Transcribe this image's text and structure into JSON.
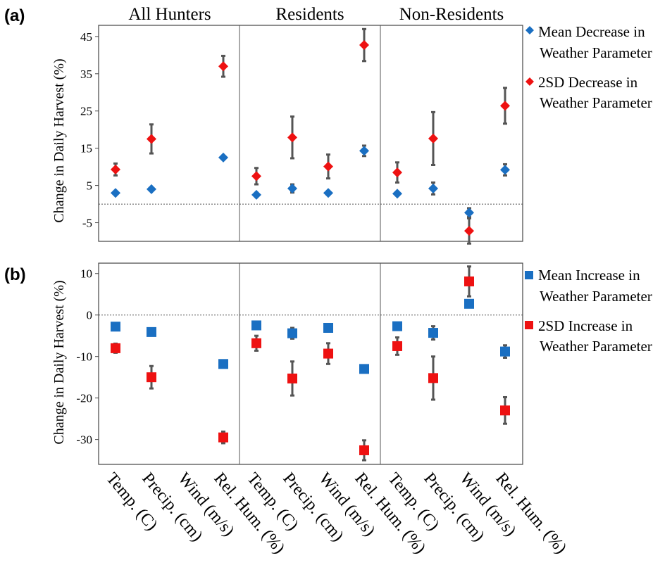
{
  "chart_data": [
    {
      "type": "scatter",
      "panel_label": "(a)",
      "groups": [
        "All Hunters",
        "Residents",
        "Non-Residents"
      ],
      "categories": [
        "Temp. (C)",
        "Precip. (cm)",
        "Wind (m/s)",
        "Rel. Hum. (%)"
      ],
      "ylabel": "Change in Daily Harvest (%)",
      "ylim": [
        -10,
        48
      ],
      "yticks": [
        "45",
        "35",
        "25",
        "15",
        "5",
        "-5"
      ],
      "ytick_values": [
        45,
        35,
        25,
        15,
        5,
        -5
      ],
      "reference_line": 0,
      "marker": "diamond",
      "series": [
        {
          "name": "Mean Decrease in Weather Parameter",
          "legend_lines": [
            "Mean Decrease in",
            "Weather Parameter"
          ],
          "color": "#1a6fc2",
          "values": [
            [
              3,
              4,
              null,
              12.5
            ],
            [
              2.5,
              4.2,
              3,
              14.3
            ],
            [
              2.8,
              4.2,
              -2.3,
              9.2
            ]
          ],
          "errors": [
            [
              null,
              null,
              null,
              null
            ],
            [
              null,
              1.1,
              null,
              1.4
            ],
            [
              null,
              1.6,
              1.2,
              1.5
            ]
          ]
        },
        {
          "name": "2SD Decrease in Weather Parameter",
          "legend_lines": [
            "2SD Decrease in",
            "Weather Parameter"
          ],
          "color": "#ee1111",
          "values": [
            [
              9.3,
              17.5,
              null,
              37
            ],
            [
              7.5,
              17.9,
              10.1,
              42.7
            ],
            [
              8.5,
              17.6,
              -7.2,
              26.4
            ]
          ],
          "errors": [
            [
              1.6,
              3.9,
              null,
              2.8
            ],
            [
              2.2,
              5.6,
              3.2,
              4.3
            ],
            [
              2.7,
              7.1,
              3.4,
              4.8
            ]
          ]
        }
      ]
    },
    {
      "type": "scatter",
      "panel_label": "(b)",
      "groups": [
        "All Hunters",
        "Residents",
        "Non-Residents"
      ],
      "categories": [
        "Temp. (C)",
        "Precip. (cm)",
        "Wind (m/s)",
        "Rel. Hum. (%)"
      ],
      "ylabel": "Change in Daily Harvest (%)",
      "ylim": [
        -36,
        12.5
      ],
      "yticks": [
        "10",
        "0",
        "-10",
        "-20",
        "-30"
      ],
      "ytick_values": [
        10,
        0,
        -10,
        -20,
        -30
      ],
      "reference_line": 0,
      "marker": "square",
      "series": [
        {
          "name": "Mean Increase in Weather Parameter",
          "legend_lines": [
            "Mean Increase in",
            "Weather Parameter"
          ],
          "color": "#1a6fc2",
          "values": [
            [
              -2.8,
              -4.1,
              null,
              -11.8
            ],
            [
              -2.5,
              -4.4,
              -3.1,
              -13
            ],
            [
              -2.7,
              -4.3,
              2.7,
              -8.8
            ]
          ],
          "errors": [
            [
              null,
              null,
              null,
              null
            ],
            [
              null,
              1.3,
              null,
              null
            ],
            [
              null,
              1.6,
              null,
              1.5
            ]
          ]
        },
        {
          "name": "2SD Increase in Weather Parameter",
          "legend_lines": [
            "2SD Increase in",
            "Weather Parameter"
          ],
          "color": "#ee1111",
          "values": [
            [
              -8,
              -15,
              null,
              -29.5
            ],
            [
              -6.8,
              -15.3,
              -9.3,
              -32.6
            ],
            [
              -7.5,
              -15.2,
              8.1,
              -23
            ]
          ],
          "errors": [
            [
              1.1,
              2.7,
              null,
              1.4
            ],
            [
              1.8,
              4.1,
              2.5,
              2.4
            ],
            [
              2.1,
              5.2,
              3.6,
              3.2
            ]
          ]
        }
      ]
    }
  ]
}
